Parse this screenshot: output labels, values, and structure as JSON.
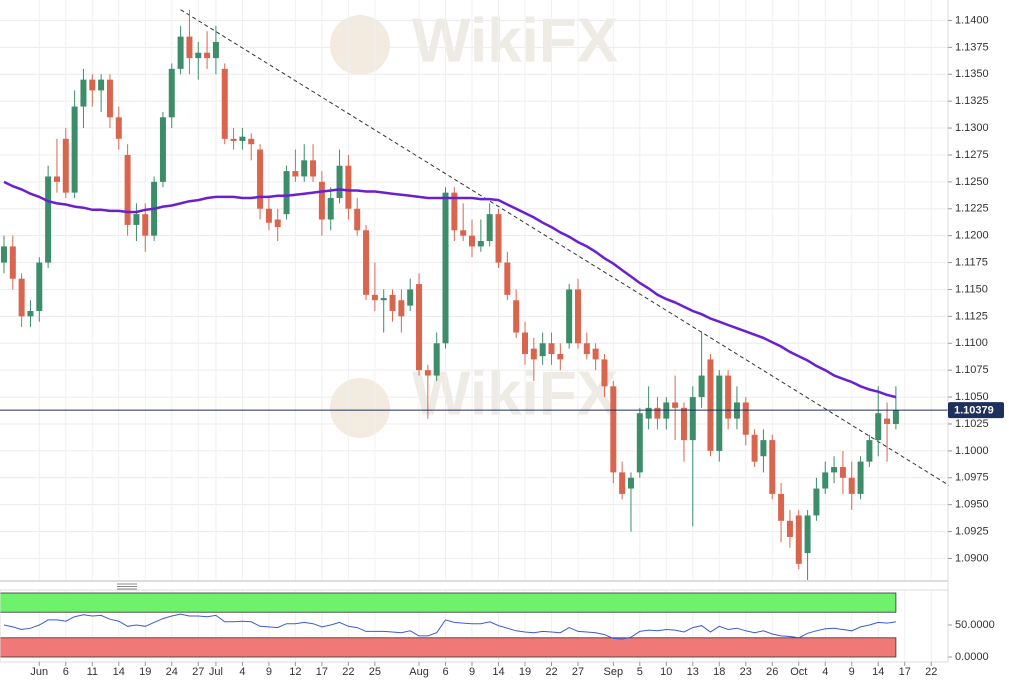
{
  "chart_data": {
    "type": "candlestick",
    "watermark": "WikiFX",
    "xlim": [
      -0.45,
      106.9
    ],
    "xticks": [
      {
        "value": 4,
        "label": "Jun"
      },
      {
        "value": 7,
        "label": "6"
      },
      {
        "value": 10,
        "label": "11"
      },
      {
        "value": 13,
        "label": "14"
      },
      {
        "value": 16,
        "label": "19"
      },
      {
        "value": 19,
        "label": "24"
      },
      {
        "value": 22,
        "label": "27"
      },
      {
        "value": 24,
        "label": "Jul"
      },
      {
        "value": 27,
        "label": "4"
      },
      {
        "value": 30,
        "label": "9"
      },
      {
        "value": 33,
        "label": "12"
      },
      {
        "value": 36,
        "label": "17"
      },
      {
        "value": 39,
        "label": "22"
      },
      {
        "value": 42,
        "label": "25"
      },
      {
        "value": 47,
        "label": "Aug"
      },
      {
        "value": 50,
        "label": "6"
      },
      {
        "value": 53,
        "label": "9"
      },
      {
        "value": 56,
        "label": "14"
      },
      {
        "value": 59,
        "label": "19"
      },
      {
        "value": 62,
        "label": "22"
      },
      {
        "value": 65,
        "label": "27"
      },
      {
        "value": 69,
        "label": "Sep"
      },
      {
        "value": 72,
        "label": "5"
      },
      {
        "value": 75,
        "label": "10"
      },
      {
        "value": 78,
        "label": "13"
      },
      {
        "value": 81,
        "label": "18"
      },
      {
        "value": 84,
        "label": "23"
      },
      {
        "value": 87,
        "label": "26"
      },
      {
        "value": 90,
        "label": "Oct"
      },
      {
        "value": 93,
        "label": "4"
      },
      {
        "value": 96,
        "label": "9"
      },
      {
        "value": 99,
        "label": "14"
      },
      {
        "value": 102,
        "label": "17"
      },
      {
        "value": 105,
        "label": "22"
      }
    ],
    "ylim": [
      1.088,
      1.1419
    ],
    "yticks": [
      {
        "value": 1.09,
        "label": "1.0900"
      },
      {
        "value": 1.0925,
        "label": "1.0925"
      },
      {
        "value": 1.095,
        "label": "1.0950"
      },
      {
        "value": 1.0975,
        "label": "1.0975"
      },
      {
        "value": 1.1,
        "label": "1.1000"
      },
      {
        "value": 1.1025,
        "label": "1.1025"
      },
      {
        "value": 1.105,
        "label": "1.1050"
      },
      {
        "value": 1.1075,
        "label": "1.1075"
      },
      {
        "value": 1.11,
        "label": "1.1100"
      },
      {
        "value": 1.1125,
        "label": "1.1125"
      },
      {
        "value": 1.115,
        "label": "1.1150"
      },
      {
        "value": 1.1175,
        "label": "1.1175"
      },
      {
        "value": 1.12,
        "label": "1.1200"
      },
      {
        "value": 1.1225,
        "label": "1.1225"
      },
      {
        "value": 1.125,
        "label": "1.1250"
      },
      {
        "value": 1.1275,
        "label": "1.1275"
      },
      {
        "value": 1.13,
        "label": "1.1300"
      },
      {
        "value": 1.1325,
        "label": "1.1325"
      },
      {
        "value": 1.135,
        "label": "1.1350"
      },
      {
        "value": 1.1375,
        "label": "1.1375"
      },
      {
        "value": 1.14,
        "label": "1.1400"
      }
    ],
    "grid": true,
    "up_color": "#3d8d6b",
    "down_color": "#d9654f",
    "open": [
      1.1175,
      1.119,
      1.116,
      1.1125,
      1.113,
      1.1175,
      1.1255,
      1.129,
      1.124,
      1.132,
      1.1345,
      1.1335,
      1.1345,
      1.131,
      1.1275,
      1.121,
      1.122,
      1.12,
      1.125,
      1.131,
      1.1355,
      1.1385,
      1.1365,
      1.137,
      1.1365,
      1.1355,
      1.129,
      1.1288,
      1.129,
      1.128,
      1.1225,
      1.1215,
      1.122,
      1.126,
      1.1255,
      1.127,
      1.125,
      1.1215,
      1.1235,
      1.1265,
      1.1225,
      1.1205,
      1.1145,
      1.114,
      1.1145,
      1.114,
      1.1135,
      1.1155,
      1.1075,
      1.107,
      1.11,
      1.124,
      1.1205,
      1.12,
      1.119,
      1.1195,
      1.122,
      1.1175,
      1.114,
      1.111,
      1.1095,
      1.1088,
      1.11,
      1.109,
      1.11,
      1.115,
      1.11,
      1.1095,
      1.1085,
      1.106,
      1.098,
      1.0965,
      1.098,
      1.103,
      1.104,
      1.103,
      1.1045,
      1.104,
      1.101,
      1.105,
      1.1085,
      1.1,
      1.107,
      1.103,
      1.1045,
      1.1015,
      1.0995,
      1.101,
      1.096,
      1.0935,
      1.094,
      1.0905,
      1.094,
      1.0965,
      1.098,
      1.0985,
      1.0975,
      1.096,
      1.099,
      1.101,
      1.103,
      1.1025
    ],
    "high": [
      1.12,
      1.12,
      1.1165,
      1.114,
      1.118,
      1.1265,
      1.129,
      1.13,
      1.1335,
      1.1355,
      1.135,
      1.135,
      1.135,
      1.132,
      1.1285,
      1.123,
      1.123,
      1.1255,
      1.1315,
      1.136,
      1.1395,
      1.141,
      1.138,
      1.139,
      1.1395,
      1.136,
      1.13,
      1.13,
      1.1295,
      1.1285,
      1.1235,
      1.1225,
      1.1265,
      1.128,
      1.1285,
      1.1285,
      1.126,
      1.1245,
      1.128,
      1.1275,
      1.1235,
      1.121,
      1.1175,
      1.115,
      1.115,
      1.115,
      1.116,
      1.1165,
      1.108,
      1.111,
      1.1245,
      1.1245,
      1.123,
      1.1215,
      1.1215,
      1.123,
      1.1225,
      1.1185,
      1.115,
      1.112,
      1.1105,
      1.111,
      1.111,
      1.11,
      1.1155,
      1.116,
      1.111,
      1.11,
      1.109,
      1.1065,
      1.099,
      1.098,
      1.104,
      1.106,
      1.105,
      1.105,
      1.107,
      1.1045,
      1.106,
      1.111,
      1.109,
      1.1075,
      1.1075,
      1.106,
      1.105,
      1.102,
      1.102,
      1.1015,
      1.097,
      1.0945,
      1.0945,
      1.0945,
      1.0975,
      1.099,
      1.0995,
      1.1,
      1.099,
      1.0995,
      1.1015,
      1.106,
      1.1045,
      1.106
    ],
    "low": [
      1.1165,
      1.115,
      1.1115,
      1.1115,
      1.112,
      1.117,
      1.124,
      1.1235,
      1.1235,
      1.13,
      1.132,
      1.1315,
      1.13,
      1.128,
      1.12,
      1.1195,
      1.1185,
      1.1195,
      1.1245,
      1.13,
      1.135,
      1.135,
      1.1345,
      1.1355,
      1.135,
      1.1285,
      1.128,
      1.128,
      1.127,
      1.1215,
      1.1205,
      1.1195,
      1.1215,
      1.125,
      1.125,
      1.125,
      1.12,
      1.1205,
      1.123,
      1.1215,
      1.12,
      1.114,
      1.113,
      1.111,
      1.112,
      1.111,
      1.113,
      1.107,
      1.103,
      1.1065,
      1.1095,
      1.1195,
      1.1195,
      1.118,
      1.1185,
      1.119,
      1.117,
      1.114,
      1.1105,
      1.108,
      1.1065,
      1.108,
      1.108,
      1.1075,
      1.1095,
      1.1095,
      1.1085,
      1.1075,
      1.105,
      1.097,
      1.0955,
      1.0925,
      1.0975,
      1.102,
      1.102,
      1.102,
      1.101,
      1.099,
      1.093,
      1.104,
      1.0995,
      1.099,
      1.102,
      1.102,
      1.1005,
      1.0985,
      1.098,
      1.0955,
      1.0915,
      1.091,
      1.089,
      1.088,
      1.0935,
      1.096,
      1.097,
      1.096,
      1.0945,
      1.0955,
      1.0985,
      1.0995,
      1.099,
      1.102
    ],
    "close": [
      1.119,
      1.116,
      1.1125,
      1.113,
      1.1175,
      1.1255,
      1.125,
      1.124,
      1.132,
      1.1345,
      1.1335,
      1.1345,
      1.131,
      1.129,
      1.121,
      1.122,
      1.12,
      1.125,
      1.131,
      1.1355,
      1.1385,
      1.1365,
      1.137,
      1.1365,
      1.138,
      1.129,
      1.1288,
      1.1292,
      1.1285,
      1.1225,
      1.1212,
      1.1208,
      1.126,
      1.1255,
      1.127,
      1.1255,
      1.1215,
      1.1235,
      1.1265,
      1.1225,
      1.1205,
      1.1145,
      1.114,
      1.1142,
      1.113,
      1.1125,
      1.115,
      1.1075,
      1.107,
      1.11,
      1.124,
      1.1205,
      1.12,
      1.119,
      1.1195,
      1.122,
      1.1175,
      1.1145,
      1.111,
      1.109,
      1.1085,
      1.11,
      1.109,
      1.1085,
      1.115,
      1.11,
      1.109,
      1.1085,
      1.106,
      1.098,
      1.096,
      1.0975,
      1.1035,
      1.104,
      1.103,
      1.1045,
      1.104,
      1.101,
      1.105,
      1.107,
      1.1,
      1.107,
      1.103,
      1.1045,
      1.1015,
      1.099,
      1.101,
      1.096,
      1.0935,
      1.092,
      1.0895,
      1.094,
      1.0965,
      1.098,
      1.0985,
      1.0975,
      1.096,
      1.099,
      1.101,
      1.1035,
      1.1025,
      1.10379
    ],
    "moving_average": {
      "color": "#6a1fd1",
      "values": [
        1.125,
        1.1246,
        1.1243,
        1.1239,
        1.1236,
        1.1232,
        1.123,
        1.1229,
        1.1227,
        1.1226,
        1.1224,
        1.1224,
        1.1223,
        1.1223,
        1.1222,
        1.1222,
        1.1224,
        1.1225,
        1.1227,
        1.1228,
        1.123,
        1.1232,
        1.1233,
        1.1235,
        1.1236,
        1.1236,
        1.1236,
        1.1235,
        1.1235,
        1.1236,
        1.1236,
        1.1237,
        1.1237,
        1.1238,
        1.1239,
        1.124,
        1.1241,
        1.1242,
        1.1243,
        1.1242,
        1.1242,
        1.1241,
        1.1241,
        1.124,
        1.1239,
        1.1238,
        1.1237,
        1.1236,
        1.1235,
        1.1235,
        1.1235,
        1.1235,
        1.1235,
        1.1235,
        1.1234,
        1.1234,
        1.1233,
        1.1229,
        1.1225,
        1.1221,
        1.1217,
        1.1212,
        1.1208,
        1.1203,
        1.1199,
        1.1194,
        1.119,
        1.1185,
        1.1179,
        1.1174,
        1.1168,
        1.1162,
        1.1156,
        1.1151,
        1.1145,
        1.1141,
        1.1138,
        1.1134,
        1.113,
        1.1127,
        1.1123,
        1.112,
        1.1117,
        1.1114,
        1.1111,
        1.1108,
        1.1105,
        1.1101,
        1.1097,
        1.1092,
        1.1088,
        1.1084,
        1.1079,
        1.1075,
        1.107,
        1.1067,
        1.1064,
        1.106,
        1.1057,
        1.1055,
        1.1052,
        1.105
      ]
    },
    "trendline": {
      "x": [
        20,
        107
      ],
      "y": [
        1.141,
        1.0968
      ]
    },
    "last_price": 1.10379,
    "last_price_color": "#1d2f5c",
    "indicator": {
      "ylim": [
        0,
        100
      ],
      "yticks": [
        {
          "value": 50,
          "label": "50.0000"
        },
        {
          "value": 0,
          "label": "0.0000"
        }
      ],
      "upper_band": [
        70,
        100
      ],
      "lower_band": [
        0,
        30
      ],
      "upper_color": "#6ef16b",
      "lower_color": "#f07876",
      "color": "#3b5bd8",
      "values": [
        50,
        47,
        43,
        45,
        50,
        58,
        58,
        56,
        63,
        66,
        64,
        65,
        59,
        56,
        48,
        50,
        48,
        54,
        60,
        64,
        67,
        64,
        64,
        63,
        65,
        55,
        55,
        56,
        55,
        48,
        47,
        46,
        52,
        52,
        54,
        52,
        47,
        50,
        54,
        48,
        46,
        40,
        40,
        40,
        39,
        38,
        41,
        33,
        33,
        38,
        58,
        54,
        53,
        52,
        52,
        55,
        49,
        45,
        41,
        39,
        38,
        40,
        39,
        38,
        46,
        40,
        39,
        38,
        35,
        29,
        28,
        31,
        40,
        42,
        41,
        43,
        42,
        39,
        46,
        49,
        39,
        48,
        43,
        45,
        41,
        38,
        41,
        36,
        33,
        32,
        30,
        37,
        41,
        44,
        45,
        43,
        41,
        47,
        50,
        54,
        53,
        55
      ]
    }
  }
}
